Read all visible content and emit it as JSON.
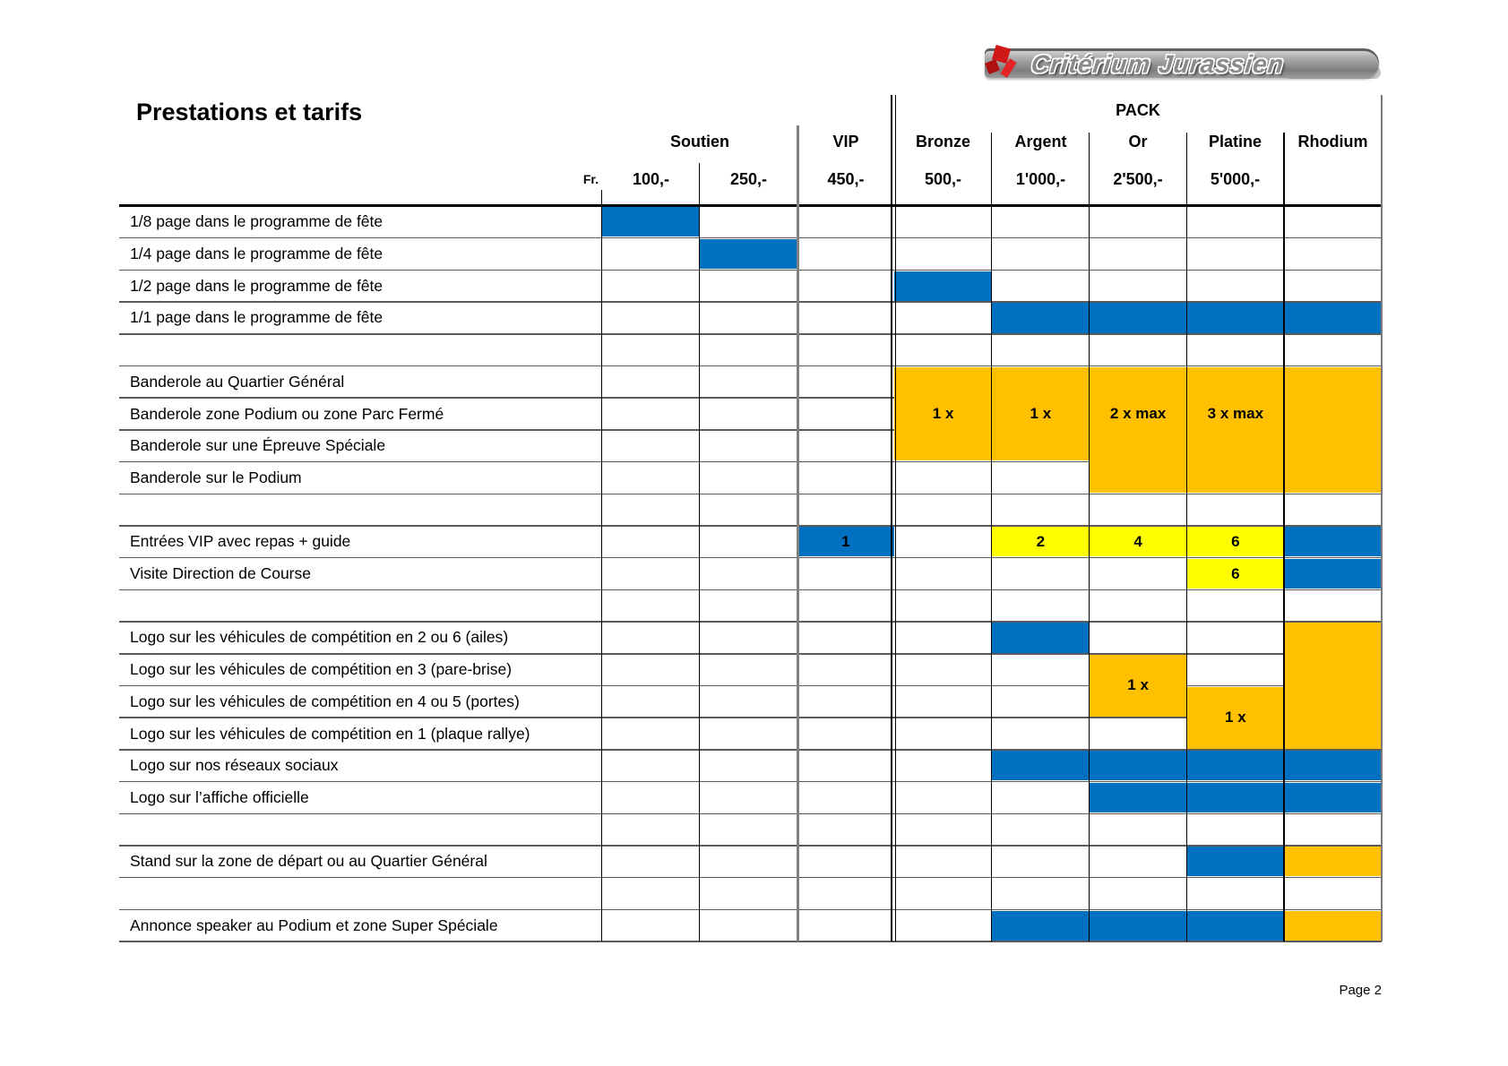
{
  "logo": {
    "text": "Critérium Jurassien"
  },
  "header": {
    "title": "Prestations et tarifs",
    "pack": "PACK",
    "fr": "Fr.",
    "soutien": "Soutien",
    "vip": "VIP",
    "bronze": "Bronze",
    "argent": "Argent",
    "or": "Or",
    "platine": "Platine",
    "rhodium": "Rhodium",
    "prices": {
      "p100": "100,-",
      "p250": "250,-",
      "p450": "450,-",
      "p500": "500,-",
      "p1000": "1'000,-",
      "p2500": "2'500,-",
      "p5000": "5'000,-"
    }
  },
  "colors": {
    "blue": "#0070C0",
    "orange": "#FFC000",
    "yellow": "#FFFF00"
  },
  "table": {
    "rows": [
      {
        "label": "1/8 page dans le programme de fête"
      },
      {
        "label": "1/4 page dans le programme de fête"
      },
      {
        "label": "1/2 page dans le programme de fête"
      },
      {
        "label": "1/1 page dans le programme de fête"
      },
      {
        "label": ""
      },
      {
        "label": "Banderole au Quartier Général"
      },
      {
        "label": "Banderole zone Podium ou zone Parc Fermé"
      },
      {
        "label": "Banderole sur une Épreuve Spéciale"
      },
      {
        "label": "Banderole sur le Podium"
      },
      {
        "label": ""
      },
      {
        "label": "Entrées VIP avec repas + guide"
      },
      {
        "label": "Visite Direction de Course"
      },
      {
        "label": ""
      },
      {
        "label": "Logo sur les véhicules de compétition en 2 ou 6 (ailes)"
      },
      {
        "label": "Logo sur les véhicules de compétition en 3 (pare-brise)"
      },
      {
        "label": "Logo sur les véhicules de compétition en 4 ou 5 (portes)"
      },
      {
        "label": "Logo sur les véhicules de compétition en 1 (plaque rallye)"
      },
      {
        "label": "Logo sur nos réseaux sociaux"
      },
      {
        "label": "Logo sur l’affiche officielle"
      },
      {
        "label": ""
      },
      {
        "label": "Stand sur la zone de départ ou au Quartier Général"
      },
      {
        "label": ""
      },
      {
        "label": "Annonce speaker au Podium et zone Super Spéciale"
      }
    ],
    "cells": [
      {
        "r": 1,
        "c": 0,
        "color": "blue"
      },
      {
        "r": 2,
        "c": 1,
        "color": "blue"
      },
      {
        "r": 3,
        "c": 3,
        "color": "blue"
      },
      {
        "r": 4,
        "c": 4,
        "color": "blue"
      },
      {
        "r": 4,
        "c": 5,
        "color": "blue"
      },
      {
        "r": 4,
        "c": 6,
        "color": "blue"
      },
      {
        "r": 4,
        "c": 7,
        "color": "blue"
      },
      {
        "r": 6,
        "c": 3,
        "rs": 3,
        "color": "orange",
        "text": "1 x"
      },
      {
        "r": 6,
        "c": 4,
        "rs": 3,
        "color": "orange",
        "text": "1 x"
      },
      {
        "r": 6,
        "c": 5,
        "rs": 4,
        "color": "orange",
        "text": "2 x max",
        "textRows": 3
      },
      {
        "r": 6,
        "c": 6,
        "rs": 4,
        "color": "orange",
        "text": "3 x max",
        "textRows": 3
      },
      {
        "r": 6,
        "c": 7,
        "rs": 4,
        "color": "orange"
      },
      {
        "r": 11,
        "c": 2,
        "color": "blue",
        "text": "1"
      },
      {
        "r": 11,
        "c": 4,
        "color": "yellow",
        "text": "2"
      },
      {
        "r": 11,
        "c": 5,
        "color": "yellow",
        "text": "4"
      },
      {
        "r": 11,
        "c": 6,
        "color": "yellow",
        "text": "6"
      },
      {
        "r": 11,
        "c": 7,
        "color": "blue"
      },
      {
        "r": 12,
        "c": 6,
        "color": "yellow",
        "text": "6"
      },
      {
        "r": 12,
        "c": 7,
        "color": "blue"
      },
      {
        "r": 14,
        "c": 4,
        "color": "blue"
      },
      {
        "r": 14,
        "c": 7,
        "rs": 4,
        "color": "orange"
      },
      {
        "r": 15,
        "c": 5,
        "rs": 2,
        "color": "orange",
        "text": "1 x"
      },
      {
        "r": 16,
        "c": 6,
        "rs": 2,
        "color": "orange",
        "text": "1 x"
      },
      {
        "r": 18,
        "c": 4,
        "color": "blue"
      },
      {
        "r": 18,
        "c": 5,
        "color": "blue"
      },
      {
        "r": 18,
        "c": 6,
        "color": "blue"
      },
      {
        "r": 18,
        "c": 7,
        "color": "blue"
      },
      {
        "r": 19,
        "c": 5,
        "color": "blue"
      },
      {
        "r": 19,
        "c": 6,
        "color": "blue"
      },
      {
        "r": 19,
        "c": 7,
        "color": "blue"
      },
      {
        "r": 21,
        "c": 6,
        "color": "blue"
      },
      {
        "r": 21,
        "c": 7,
        "color": "orange"
      },
      {
        "r": 23,
        "c": 4,
        "color": "blue"
      },
      {
        "r": 23,
        "c": 5,
        "color": "blue"
      },
      {
        "r": 23,
        "c": 6,
        "color": "blue"
      },
      {
        "r": 23,
        "c": 7,
        "color": "orange"
      }
    ]
  },
  "footer": {
    "page": "Page 2"
  }
}
